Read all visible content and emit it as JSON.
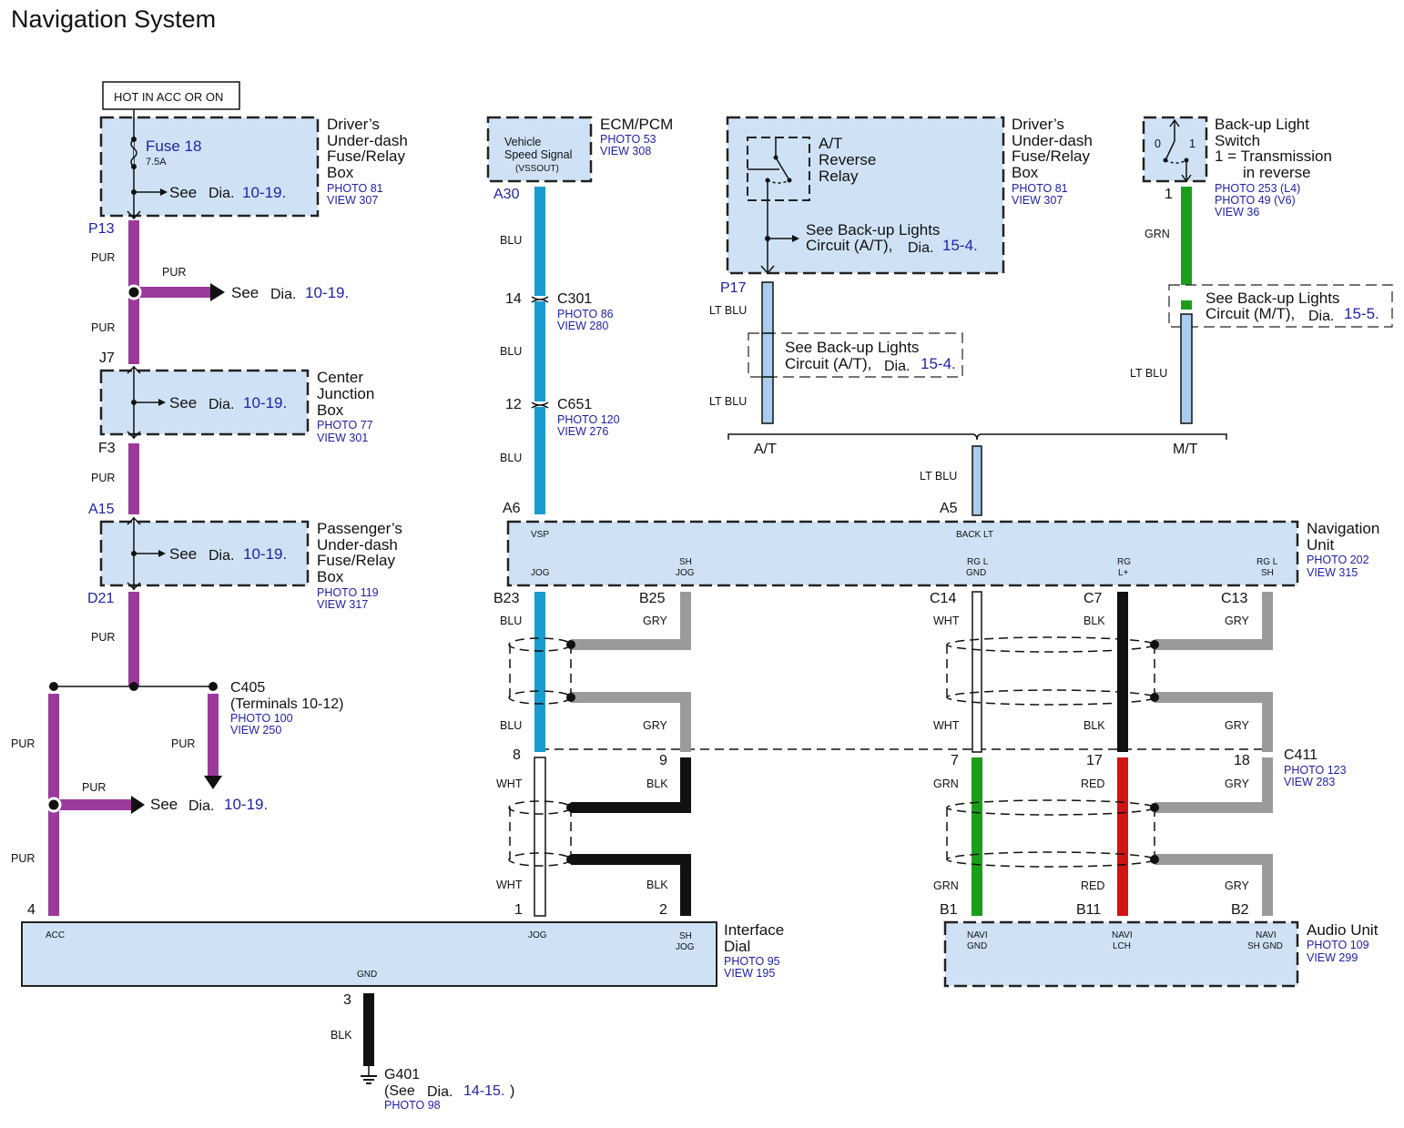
{
  "title": "Navigation System",
  "common": {
    "see": "See",
    "dia": "Dia."
  },
  "colors": {
    "box_fill": "#cfe2f5",
    "PUR": "#9b3a9b",
    "BLU": "#1a9bd0",
    "LT BLU": "#a8cdf0",
    "GRN": "#1a9e1a",
    "RED": "#d01414",
    "GRY": "#9a9a9a",
    "BLK": "#111111",
    "WHT": "#ffffff",
    "link_text": "#1f1fa8"
  },
  "hot_label": "HOT IN ACC OR ON",
  "fuse": {
    "name": "Fuse 18",
    "rating": "7.5A",
    "ref": "10-19."
  },
  "driver_box": {
    "lines": [
      "Driver’s",
      "Under-dash",
      "Fuse/Relay",
      "Box"
    ],
    "photo": "PHOTO 81",
    "view": "VIEW 307"
  },
  "p13_branch": {
    "ref": "10-19."
  },
  "center_jb": {
    "lines": [
      "Center",
      "Junction",
      "Box"
    ],
    "photo": "PHOTO 77",
    "view": "VIEW 301",
    "ref": "10-19."
  },
  "passenger_box": {
    "lines": [
      "Passenger’s",
      "Under-dash",
      "Fuse/Relay",
      "Box"
    ],
    "photo": "PHOTO 119",
    "view": "VIEW 317",
    "ref": "10-19."
  },
  "c405": {
    "name": "C405",
    "terminals": "(Terminals 10-12)",
    "photo": "PHOTO 100",
    "view": "VIEW 250"
  },
  "acc_branch": {
    "ref": "10-19."
  },
  "pins": {
    "P13": "P13",
    "J7": "J7",
    "F3": "F3",
    "A15": "A15",
    "D21": "D21",
    "acc4": "4",
    "gnd3": "3",
    "A30": "A30",
    "c301": "14",
    "c651": "12",
    "A6": "A6",
    "A5": "A5",
    "P17": "P17",
    "sw1": "1",
    "B23": "B23",
    "B25": "B25",
    "C14": "C14",
    "C7": "C7",
    "C13": "C13",
    "c411_8": "8",
    "c411_9": "9",
    "c411_7": "7",
    "c411_17": "17",
    "c411_18": "18",
    "jog1": "1",
    "shjog2": "2",
    "B1": "B1",
    "B11": "B11",
    "B2": "B2"
  },
  "wires": {
    "PUR": "PUR",
    "BLU": "BLU",
    "LTBLU": "LT BLU",
    "GRN": "GRN",
    "GRY": "GRY",
    "BLK": "BLK",
    "WHT": "WHT",
    "RED": "RED"
  },
  "ecm": {
    "name": "ECM/PCM",
    "photo": "PHOTO 53",
    "view": "VIEW 308",
    "inner": [
      "Vehicle",
      "Speed Signal",
      "(VSSOUT)"
    ]
  },
  "c301": {
    "name": "C301",
    "photo": "PHOTO 86",
    "view": "VIEW 280"
  },
  "c651": {
    "name": "C651",
    "photo": "PHOTO 120",
    "view": "VIEW 276"
  },
  "relay_box": {
    "relay": [
      "A/T",
      "Reverse",
      "Relay"
    ],
    "lines": [
      "Driver’s",
      "Under-dash",
      "Fuse/Relay",
      "Box"
    ],
    "photo": "PHOTO 81",
    "view": "VIEW 307",
    "see1": "See Back-up Lights",
    "see2": "Circuit (A/T),",
    "ref": "15-4."
  },
  "at_ref": {
    "see1": "See Back-up Lights",
    "see2": "Circuit (A/T),",
    "ref": "15-4."
  },
  "switch": {
    "lines": [
      "Back-up Light",
      "Switch",
      "1 = Transmission",
      "in reverse"
    ],
    "photo1": "PHOTO 253 (L4)",
    "photo2": "PHOTO 49 (V6)",
    "view": "VIEW 36",
    "pos0": "0",
    "pos1": "1"
  },
  "mt_ref": {
    "see1": "See Back-up Lights",
    "see2": "Circuit (M/T),",
    "ref": "15-5."
  },
  "at_label": "A/T",
  "mt_label": "M/T",
  "nav_unit": {
    "lines": [
      "Navigation",
      "Unit"
    ],
    "photo": "PHOTO 202",
    "view": "VIEW 315",
    "vsp": "VSP",
    "backlt": "BACK LT",
    "jog": "JOG",
    "shjog": [
      "SH",
      "JOG"
    ],
    "rglgnd": [
      "RG L",
      "GND"
    ],
    "rgl": [
      "RG",
      "L+"
    ],
    "rglsh": [
      "RG L",
      "SH"
    ]
  },
  "c411": {
    "name": "C411",
    "photo": "PHOTO 123",
    "view": "VIEW 283"
  },
  "interface_dial": {
    "lines": [
      "Interface",
      "Dial"
    ],
    "photo": "PHOTO 95",
    "view": "VIEW 195",
    "acc": "ACC",
    "jog": "JOG",
    "shjog": [
      "SH",
      "JOG"
    ],
    "gnd": "GND"
  },
  "audio_unit": {
    "lines": [
      "Audio Unit"
    ],
    "photo": "PHOTO 109",
    "view": "VIEW 299",
    "navignd": [
      "NAVI",
      "GND"
    ],
    "navilch": [
      "NAVI",
      "LCH"
    ],
    "navishgnd": [
      "NAVI",
      "SH GND"
    ]
  },
  "g401": {
    "name": "G401",
    "see": "(See",
    "ref": "14-15.",
    "close": ")",
    "photo": "PHOTO 98"
  }
}
